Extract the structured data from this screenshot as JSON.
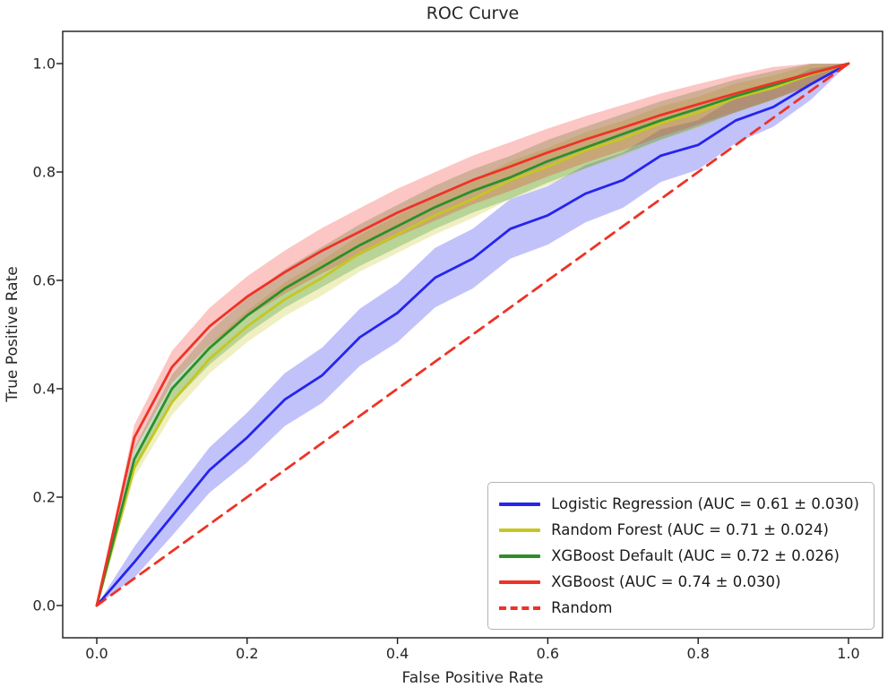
{
  "figure": {
    "title": "ROC Curve",
    "xlabel": "False Positive Rate",
    "ylabel": "True Positive Rate"
  },
  "chart_data": {
    "type": "line",
    "title": "ROC Curve",
    "xlabel": "False Positive Rate",
    "ylabel": "True Positive Rate",
    "xlim": [
      0,
      1
    ],
    "ylim": [
      0,
      1
    ],
    "grid": false,
    "legend_position": "lower right",
    "xtick_labels": [
      "0.0",
      "0.2",
      "0.4",
      "0.6",
      "0.8",
      "1.0"
    ],
    "ytick_labels": [
      "0.0",
      "0.2",
      "0.4",
      "0.6",
      "0.8",
      "1.0"
    ],
    "xticks": [
      0.0,
      0.2,
      0.4,
      0.6,
      0.8,
      1.0
    ],
    "yticks": [
      0.0,
      0.2,
      0.4,
      0.6,
      0.8,
      1.0
    ],
    "x": [
      0,
      0.05,
      0.1,
      0.15,
      0.2,
      0.25,
      0.3,
      0.35,
      0.4,
      0.45,
      0.5,
      0.55,
      0.6,
      0.65,
      0.7,
      0.75,
      0.8,
      0.85,
      0.9,
      0.95,
      1
    ],
    "series": [
      {
        "name": "Logistic Regression (AUC = 0.61 ± 0.030)",
        "color": "#2525ee",
        "style": "solid",
        "band": 0.055,
        "values": [
          0,
          0.08,
          0.165,
          0.25,
          0.31,
          0.38,
          0.425,
          0.495,
          0.54,
          0.605,
          0.64,
          0.695,
          0.72,
          0.76,
          0.785,
          0.83,
          0.85,
          0.895,
          0.92,
          0.962,
          1
        ]
      },
      {
        "name": "Random Forest (AUC = 0.71 ± 0.024)",
        "color": "#c6c622",
        "style": "solid",
        "band": 0.035,
        "values": [
          0,
          0.255,
          0.375,
          0.455,
          0.515,
          0.565,
          0.605,
          0.65,
          0.685,
          0.72,
          0.75,
          0.785,
          0.81,
          0.84,
          0.862,
          0.89,
          0.91,
          0.937,
          0.955,
          0.98,
          1
        ]
      },
      {
        "name": "XGBoost Default (AUC = 0.72 ± 0.026)",
        "color": "#2c8f2c",
        "style": "solid",
        "band": 0.04,
        "values": [
          0,
          0.27,
          0.4,
          0.475,
          0.535,
          0.585,
          0.625,
          0.665,
          0.7,
          0.735,
          0.765,
          0.79,
          0.82,
          0.845,
          0.87,
          0.895,
          0.917,
          0.94,
          0.96,
          0.982,
          1
        ]
      },
      {
        "name": "XGBoost (AUC = 0.74 ± 0.030)",
        "color": "#ef3226",
        "style": "solid",
        "band": 0.045,
        "values": [
          0,
          0.31,
          0.44,
          0.515,
          0.57,
          0.615,
          0.655,
          0.69,
          0.725,
          0.755,
          0.785,
          0.81,
          0.836,
          0.86,
          0.882,
          0.905,
          0.925,
          0.945,
          0.964,
          0.982,
          1
        ]
      },
      {
        "name": "Random",
        "color": "#ef3226",
        "style": "dashed",
        "band": 0,
        "values": [
          0,
          0.05,
          0.1,
          0.15,
          0.2,
          0.25,
          0.3,
          0.35,
          0.4,
          0.45,
          0.5,
          0.55,
          0.6,
          0.65,
          0.7,
          0.75,
          0.8,
          0.85,
          0.9,
          0.95,
          1
        ]
      }
    ]
  }
}
